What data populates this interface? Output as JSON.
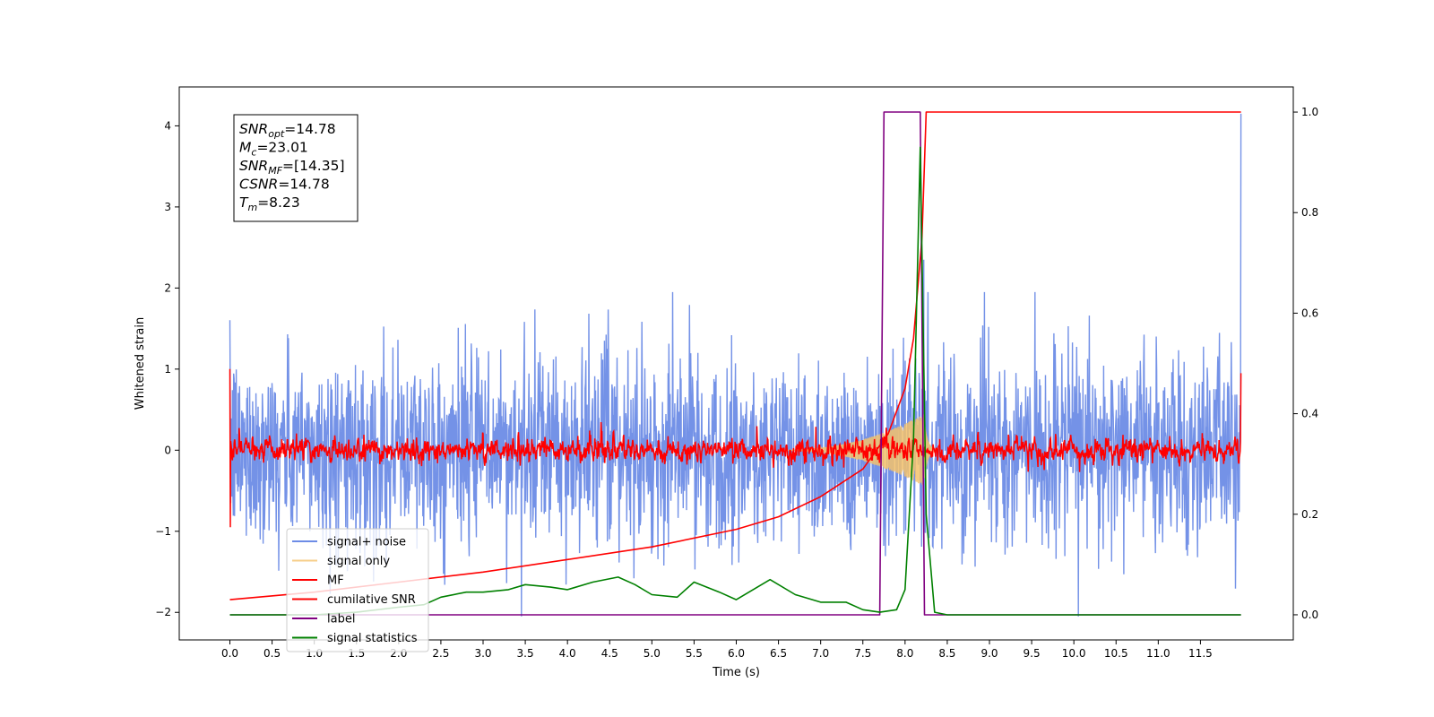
{
  "chart_data": {
    "type": "line",
    "xlabel": "Time (s)",
    "ylabel": "Whitened strain",
    "xlim": [
      -0.6,
      12.6
    ],
    "ylim": [
      -2.34,
      4.48
    ],
    "ylim_right": [
      -0.05,
      1.05
    ],
    "x_ticks": [
      0.0,
      0.5,
      1.0,
      1.5,
      2.0,
      2.5,
      3.0,
      3.5,
      4.0,
      4.5,
      5.0,
      5.5,
      6.0,
      6.5,
      7.0,
      7.5,
      8.0,
      8.5,
      9.0,
      9.5,
      10.0,
      10.5,
      11.0,
      11.5
    ],
    "x_tick_labels": [
      "0.0",
      "0.5",
      "1.0",
      "1.5",
      "2.0",
      "2.5",
      "3.0",
      "3.5",
      "4.0",
      "4.5",
      "5.0",
      "5.5",
      "6.0",
      "6.5",
      "7.0",
      "7.5",
      "8.0",
      "8.5",
      "9.0",
      "9.5",
      "10.0",
      "10.5",
      "11.0",
      "11.5"
    ],
    "y_ticks": [
      -2,
      -1,
      0,
      1,
      2,
      3,
      4
    ],
    "y_tick_labels": [
      "−2",
      "−1",
      "0",
      "1",
      "2",
      "3",
      "4"
    ],
    "y_right_ticks": [
      0.0,
      0.2,
      0.4,
      0.6,
      0.8,
      1.0
    ],
    "y_right_tick_labels": [
      "0.0",
      "0.2",
      "0.4",
      "0.6",
      "0.8",
      "1.0"
    ],
    "legend_position": "lower-left",
    "series": [
      {
        "name": "signal+ noise",
        "color": "#6d8ce6",
        "axis": "left",
        "kind": "noise",
        "noise_amplitude": 1.05,
        "t_start": 0.0,
        "t_end": 11.98,
        "notable_peaks": [
          [
            8.22,
            2.35
          ],
          [
            11.98,
            4.15
          ]
        ]
      },
      {
        "name": "signal only",
        "color": "#f5c26b",
        "axis": "left",
        "kind": "chirp",
        "merger_time": 8.23,
        "peak_amplitude": 0.45
      },
      {
        "name": "MF",
        "color": "#ff0000",
        "axis": "left",
        "kind": "noise",
        "noise_amplitude": 0.09,
        "start_value": 1.0,
        "end_value": 0.95
      },
      {
        "name": "cumilative SNR",
        "color": "#ff0000",
        "axis": "right",
        "x": [
          0.0,
          1.0,
          2.0,
          3.0,
          4.0,
          5.0,
          6.0,
          6.5,
          7.0,
          7.5,
          7.8,
          8.0,
          8.1,
          8.2,
          8.25,
          11.98
        ],
        "y": [
          0.03,
          0.045,
          0.065,
          0.085,
          0.11,
          0.135,
          0.17,
          0.195,
          0.235,
          0.29,
          0.36,
          0.45,
          0.55,
          0.75,
          1.0,
          1.0
        ]
      },
      {
        "name": "label",
        "color": "#800080",
        "axis": "right",
        "x": [
          0.0,
          7.7,
          7.75,
          8.18,
          8.23,
          11.98
        ],
        "y": [
          0.0,
          0.0,
          1.0,
          1.0,
          0.0,
          0.0
        ]
      },
      {
        "name": "signal statistics",
        "color": "#008000",
        "axis": "right",
        "x": [
          0.0,
          0.5,
          1.0,
          1.5,
          2.0,
          2.3,
          2.5,
          2.8,
          3.0,
          3.3,
          3.5,
          3.8,
          4.0,
          4.3,
          4.6,
          4.8,
          5.0,
          5.3,
          5.5,
          5.8,
          6.0,
          6.4,
          6.7,
          7.0,
          7.3,
          7.5,
          7.7,
          7.9,
          8.0,
          8.1,
          8.18,
          8.25,
          8.35,
          8.5,
          11.98
        ],
        "y": [
          0.0,
          0.0,
          0.0,
          0.005,
          0.015,
          0.02,
          0.035,
          0.045,
          0.045,
          0.05,
          0.06,
          0.055,
          0.05,
          0.065,
          0.075,
          0.06,
          0.04,
          0.035,
          0.065,
          0.045,
          0.03,
          0.07,
          0.04,
          0.025,
          0.025,
          0.01,
          0.005,
          0.01,
          0.05,
          0.35,
          0.93,
          0.2,
          0.005,
          0.0,
          0.0
        ]
      }
    ],
    "annotation": {
      "lines": [
        {
          "sym": "SNR",
          "sub": "opt",
          "rest": "=14.78"
        },
        {
          "sym": "M",
          "sub": "c",
          "rest": "=23.01"
        },
        {
          "sym": "SNR",
          "sub": "MF",
          "rest": "=[14.35]"
        },
        {
          "sym": "CSNR",
          "sub": "",
          "rest": "=14.78"
        },
        {
          "sym": "T",
          "sub": "m",
          "rest": "=8.23"
        }
      ]
    }
  }
}
